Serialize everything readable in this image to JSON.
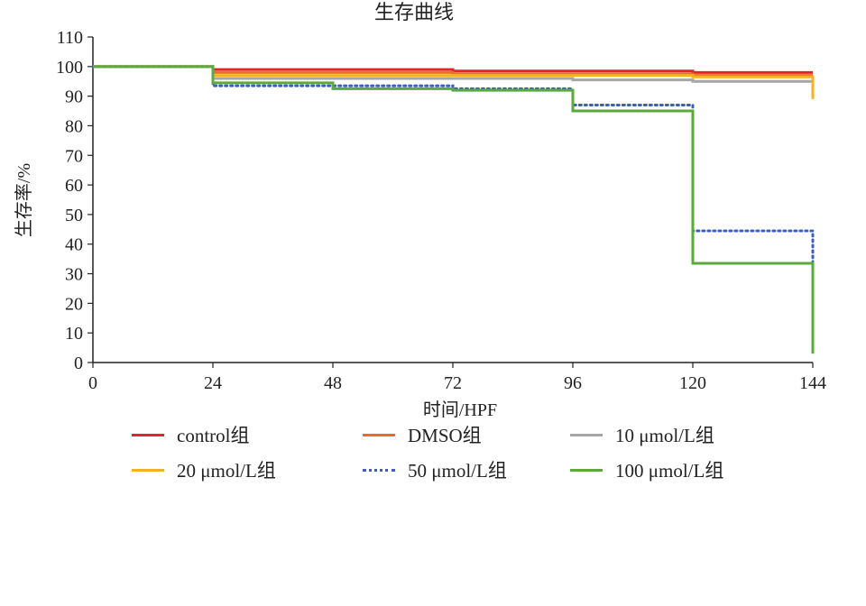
{
  "chart_data": {
    "type": "line",
    "title": "生存曲线",
    "xlabel": "时间/HPF",
    "ylabel": "生存率/%",
    "xlim": [
      0,
      144
    ],
    "ylim": [
      0,
      110
    ],
    "xticks": [
      0,
      24,
      48,
      72,
      96,
      120,
      144
    ],
    "yticks": [
      0,
      10,
      20,
      30,
      40,
      50,
      60,
      70,
      80,
      90,
      100,
      110
    ],
    "grid": false,
    "step": true,
    "legend_position": "bottom",
    "series": [
      {
        "name": "control组",
        "color": "#e0262b",
        "dash": "solid",
        "x": [
          0,
          24,
          72,
          120,
          144
        ],
        "y": [
          100,
          99,
          98.5,
          98,
          98
        ]
      },
      {
        "name": "DMSO组",
        "color": "#f06a2a",
        "dash": "solid",
        "x": [
          0,
          24,
          72,
          120,
          144
        ],
        "y": [
          100,
          98,
          97.5,
          97,
          97
        ]
      },
      {
        "name": "10 μmol/L组",
        "color": "#a6a6a6",
        "dash": "solid",
        "x": [
          0,
          24,
          72,
          96,
          120,
          144
        ],
        "y": [
          100,
          96,
          96,
          95.5,
          95,
          95
        ]
      },
      {
        "name": "20 μmol/L组",
        "color": "#f5b21e",
        "dash": "solid",
        "x": [
          0,
          24,
          72,
          120,
          144
        ],
        "y": [
          100,
          97,
          97,
          96.5,
          89
        ]
      },
      {
        "name": "50 μmol/L组",
        "color": "#3b5fc0",
        "dash": "dotted",
        "x": [
          0,
          24,
          72,
          96,
          120,
          144
        ],
        "y": [
          100,
          93.5,
          92.5,
          87,
          44.5,
          34
        ]
      },
      {
        "name": "100 μmol/L组",
        "color": "#5aab3c",
        "dash": "solid",
        "x": [
          0,
          24,
          48,
          72,
          96,
          120,
          144
        ],
        "y": [
          100,
          94.5,
          92.5,
          92,
          85,
          33.5,
          3
        ]
      }
    ]
  }
}
